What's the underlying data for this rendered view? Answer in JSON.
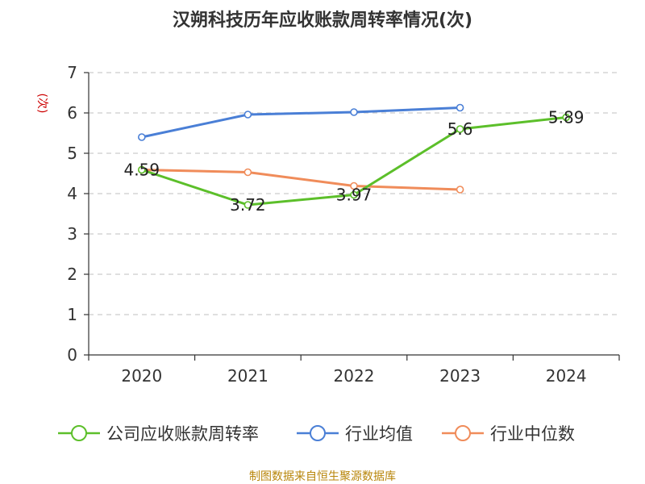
{
  "chart_data": {
    "type": "line",
    "title": "汉朔科技历年应收账款周转率情况(次)",
    "ylabel": "(次)",
    "xlabel": "",
    "categories": [
      "2020",
      "2021",
      "2022",
      "2023",
      "2024"
    ],
    "yticks": [
      "0",
      "1",
      "2",
      "3",
      "4",
      "5",
      "6",
      "7"
    ],
    "ylim": [
      0,
      7
    ],
    "grid": true,
    "legend_position": "bottom",
    "series": [
      {
        "name": "公司应收账款周转率",
        "color": "#5cbf2a",
        "values": [
          4.59,
          3.72,
          3.97,
          5.6,
          5.89
        ],
        "labels": [
          "4.59",
          "3.72",
          "3.97",
          "5.6",
          "5.89"
        ]
      },
      {
        "name": "行业均值",
        "color": "#4a7fd6",
        "values": [
          5.4,
          5.96,
          6.02,
          6.13,
          null
        ]
      },
      {
        "name": "行业中位数",
        "color": "#f08c5a",
        "values": [
          4.59,
          4.53,
          4.19,
          4.1,
          null
        ]
      }
    ],
    "source": "制图数据来自恒生聚源数据库"
  }
}
